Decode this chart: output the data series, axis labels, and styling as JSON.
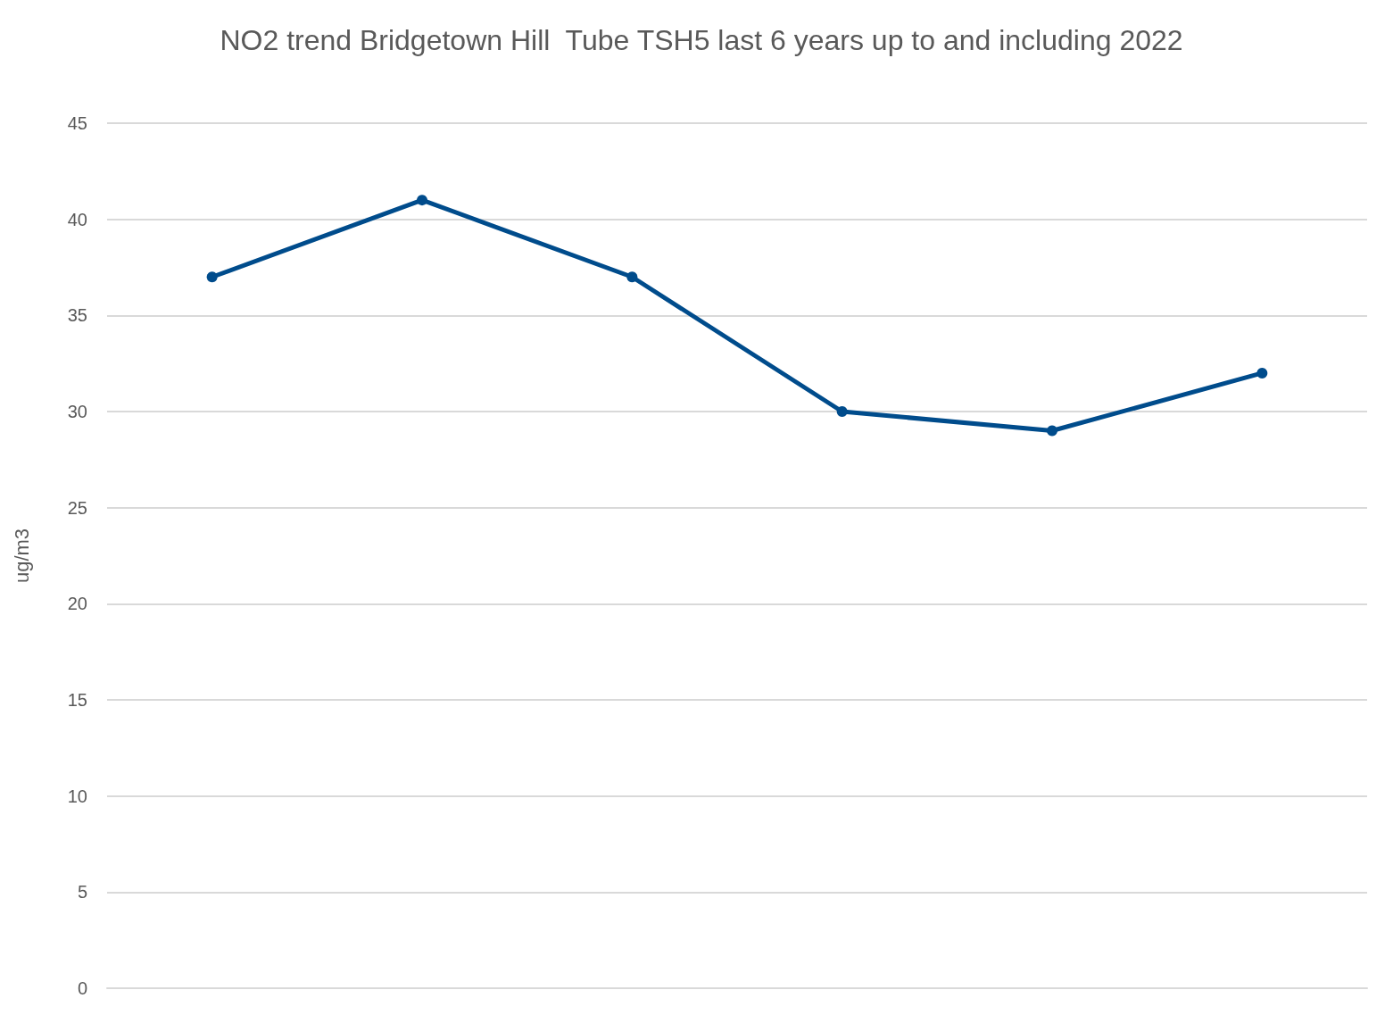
{
  "chart_data": {
    "type": "line",
    "title": "NO2 trend Bridgetown Hill  Tube TSH5 last 6 years up to and including 2022",
    "ylabel": "ug/m3",
    "categories": [
      null,
      null,
      null,
      null,
      null,
      null
    ],
    "series": [
      {
        "color": "#004c8c",
        "values": [
          37,
          41,
          37,
          30,
          29,
          32
        ]
      }
    ],
    "ylim": [
      0,
      45
    ],
    "yticks": [
      0,
      5,
      10,
      15,
      20,
      25,
      30,
      35,
      40,
      45
    ],
    "grid": "y",
    "marker": "circle",
    "line_style": "solid",
    "tick_labels": "y"
  }
}
